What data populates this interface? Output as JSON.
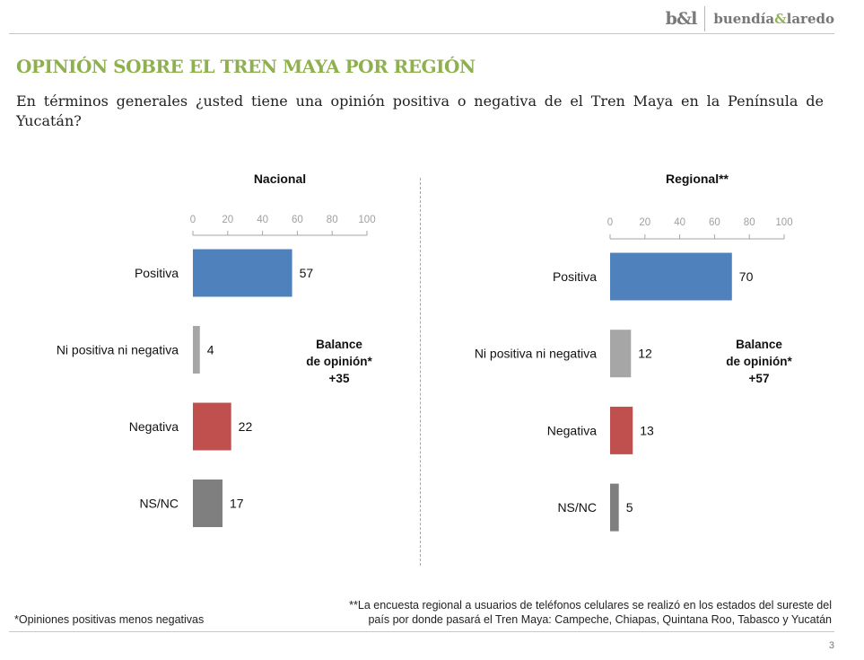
{
  "brand": {
    "mark": "b&l",
    "name_left": "buendía",
    "name_amp": "&",
    "name_right": "laredo"
  },
  "title": "OPINIÓN SOBRE EL TREN MAYA POR REGIÓN",
  "question": "En términos generales ¿usted tiene una opinión positiva o negativa de el Tren Maya en la Península de Yucatán?",
  "colors": {
    "accent": "#8fb04e",
    "positiva": "#4f81bd",
    "ni": "#a6a6a6",
    "negativa": "#c0504d",
    "nsnc": "#7f7f7f"
  },
  "chart_data": [
    {
      "type": "bar",
      "orientation": "horizontal",
      "title": "Nacional",
      "categories": [
        "Positiva",
        "Ni positiva ni negativa",
        "Negativa",
        "NS/NC"
      ],
      "values": [
        57,
        4,
        22,
        17
      ],
      "xlim": [
        0,
        100
      ],
      "xticks": [
        0,
        20,
        40,
        60,
        80,
        100
      ],
      "grid": false,
      "balance": {
        "line1": "Balance",
        "line2": "de opinión*",
        "value": "+35"
      }
    },
    {
      "type": "bar",
      "orientation": "horizontal",
      "title": "Regional**",
      "categories": [
        "Positiva",
        "Ni positiva ni negativa",
        "Negativa",
        "NS/NC"
      ],
      "values": [
        70,
        12,
        13,
        5
      ],
      "xlim": [
        0,
        100
      ],
      "xticks": [
        0,
        20,
        40,
        60,
        80,
        100
      ],
      "grid": false,
      "balance": {
        "line1": "Balance",
        "line2": "de opinión*",
        "value": "+57"
      }
    }
  ],
  "footnotes": {
    "left": "*Opiniones positivas menos negativas",
    "right_line1": "**La encuesta regional a usuarios de teléfonos celulares se realizó en los estados del sureste del",
    "right_line2": "país por donde pasará el Tren Maya: Campeche, Chiapas, Quintana Roo, Tabasco y Yucatán"
  },
  "page_number": "3"
}
